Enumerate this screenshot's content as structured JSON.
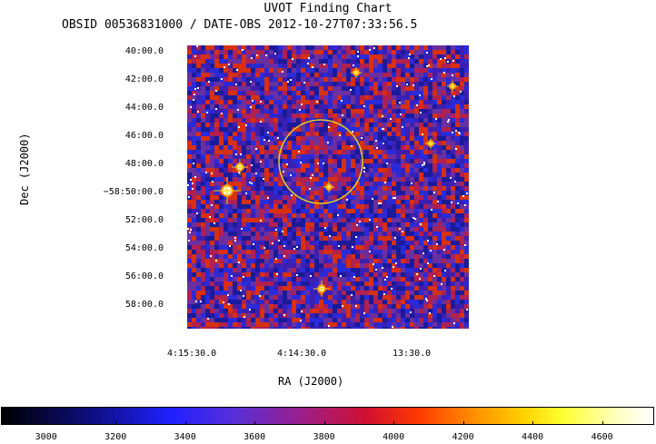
{
  "title": "UVOT Finding Chart",
  "subtitle": "OBSID 00536831000 / DATE-OBS 2012-10-27T07:33:56.5",
  "chart_data": {
    "type": "heatmap",
    "title": "UVOT Finding Chart",
    "subtitle": "OBSID 00536831000 / DATE-OBS 2012-10-27T07:33:56.5",
    "xlabel": "RA (J2000)",
    "ylabel": "Dec (J2000)",
    "x_ticks": [
      "4:15:30.0",
      "4:14:30.0",
      "13:30.0"
    ],
    "y_ticks": [
      "40:00.0",
      "42:00.0",
      "44:00.0",
      "46:00.0",
      "48:00.0",
      "−58:50:00.0",
      "52:00.0",
      "54:00.0",
      "56:00.0",
      "58:00.0"
    ],
    "colorbar_ticks": [
      3000,
      3200,
      3400,
      3600,
      3800,
      4000,
      4200,
      4400,
      4600
    ],
    "colorbar_range": [
      2870,
      4750
    ],
    "colormap": [
      "#000000",
      "#0c0c6e",
      "#2020ff",
      "#9a1f8a",
      "#d01030",
      "#ff3a00",
      "#ffd000",
      "#ffff30",
      "#ffffff"
    ],
    "marker": {
      "shape": "circle",
      "color": "#e8d020"
    },
    "background_colors": [
      "#2a2ad8",
      "#3c1fb0",
      "#6a2fa0",
      "#b02050",
      "#d83010",
      "#1a1a9a"
    ]
  }
}
